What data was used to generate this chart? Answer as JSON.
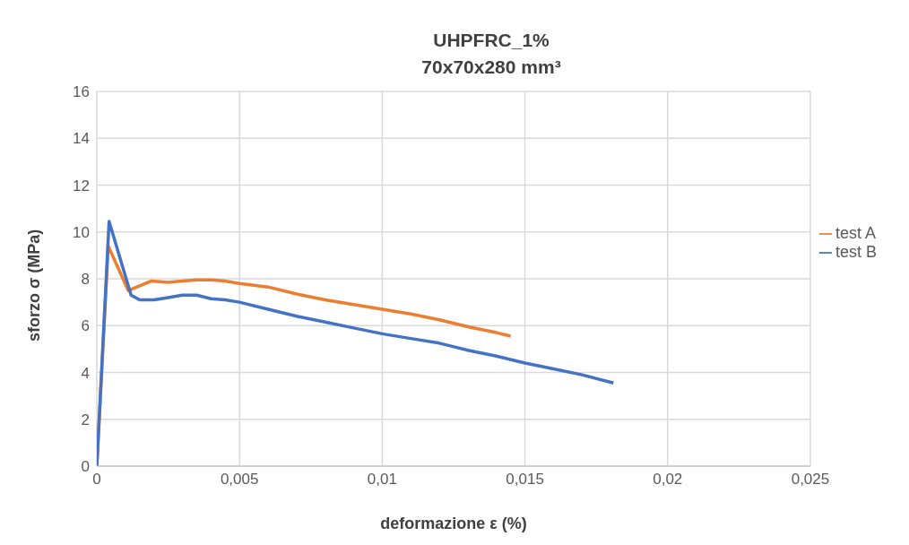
{
  "chart_data": {
    "type": "line",
    "title": "UHPFRC_1%\n70x70x280 mm³",
    "xlabel": "deformazione ε (%)",
    "ylabel": "sforzo σ (MPa)",
    "xlim": [
      0,
      0.025
    ],
    "xticks": [
      0,
      {
        "value": 0.005,
        "label": "0,005"
      },
      {
        "value": 0.01,
        "label": "0,01"
      },
      {
        "value": 0.015,
        "label": "0,015"
      },
      {
        "value": 0.02,
        "label": "0,02"
      },
      {
        "value": 0.025,
        "label": "0,025"
      }
    ],
    "ylim": [
      0,
      16
    ],
    "yticks": [
      0,
      2,
      4,
      6,
      8,
      10,
      12,
      14,
      16
    ],
    "grid": true,
    "legend": "right",
    "marker": "none",
    "line_style": "solid",
    "series": [
      {
        "name": "test A",
        "color": "#ed7d31",
        "x": [
          0,
          0.0004,
          0.0011,
          0.0015,
          0.0019,
          0.0025,
          0.003,
          0.0035,
          0.004,
          0.0045,
          0.005,
          0.006,
          0.007,
          0.008,
          0.009,
          0.01,
          0.011,
          0.012,
          0.013,
          0.014,
          0.0145
        ],
        "values": [
          0,
          9.4,
          7.5,
          7.7,
          7.9,
          7.85,
          7.9,
          7.95,
          7.95,
          7.9,
          7.8,
          7.65,
          7.35,
          7.1,
          6.9,
          6.7,
          6.5,
          6.25,
          5.95,
          5.7,
          5.55
        ]
      },
      {
        "name": "test B",
        "color": "#4472c4",
        "x": [
          0,
          0.00043,
          0.0012,
          0.0015,
          0.002,
          0.0025,
          0.003,
          0.0035,
          0.004,
          0.0045,
          0.005,
          0.006,
          0.007,
          0.008,
          0.009,
          0.01,
          0.011,
          0.012,
          0.013,
          0.014,
          0.015,
          0.016,
          0.017,
          0.0181
        ],
        "values": [
          0,
          10.45,
          7.3,
          7.1,
          7.1,
          7.2,
          7.3,
          7.3,
          7.15,
          7.1,
          7.0,
          6.7,
          6.4,
          6.15,
          5.9,
          5.65,
          5.45,
          5.25,
          4.95,
          4.7,
          4.4,
          4.15,
          3.9,
          3.55
        ]
      }
    ]
  }
}
